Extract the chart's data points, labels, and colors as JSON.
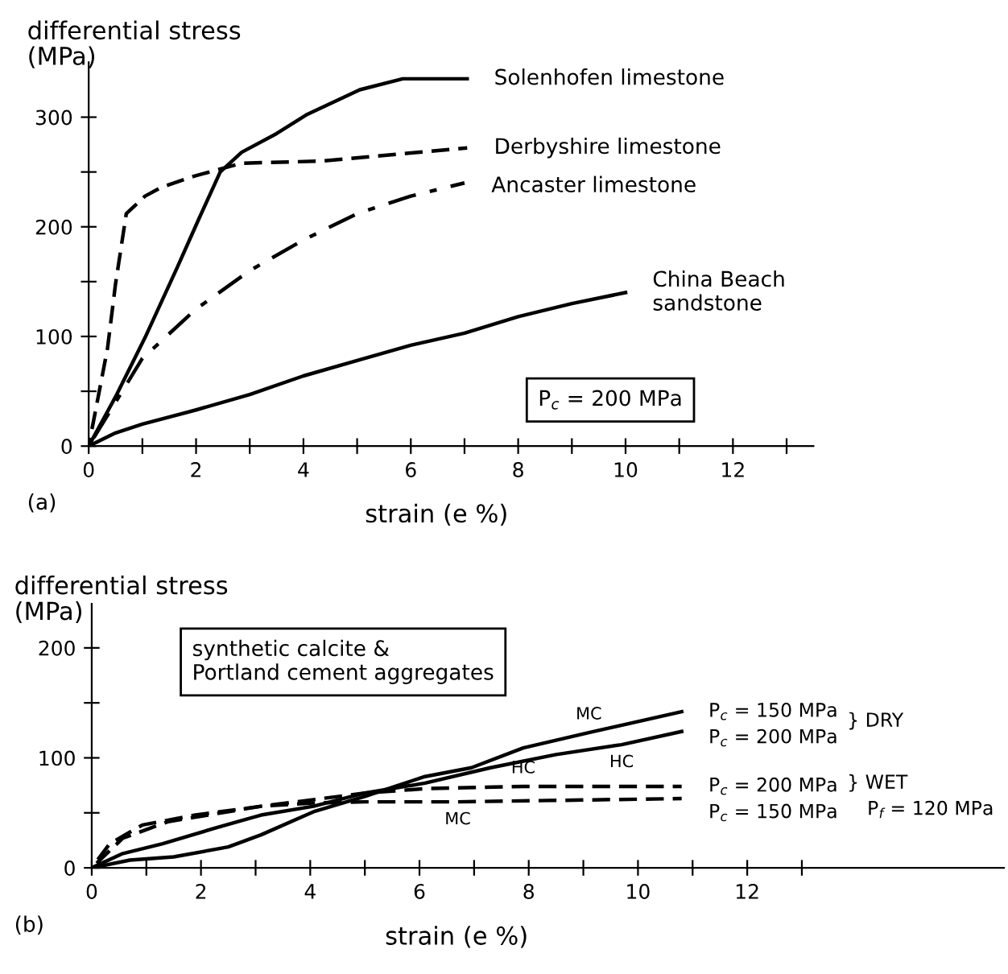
{
  "chart_data": [
    {
      "type": "line",
      "xlabel": "strain (e %)",
      "ylabel": "differential stress\n(MPa)",
      "xlim": [
        0,
        13.5
      ],
      "ylim": [
        0,
        350
      ],
      "xticks": [
        0,
        {
          "value": 1,
          "label": null
        },
        2,
        {
          "value": 3,
          "label": null
        },
        4,
        {
          "value": 5,
          "label": null
        },
        6,
        {
          "value": 7,
          "label": null
        },
        8,
        {
          "value": 9,
          "label": null
        },
        10,
        {
          "value": 11,
          "label": null
        },
        12,
        {
          "value": 13,
          "label": null
        }
      ],
      "yticks": [
        0,
        {
          "value": 50,
          "label": null
        },
        100,
        {
          "value": 150,
          "label": null
        },
        200,
        {
          "value": 250,
          "label": null
        },
        300
      ],
      "grid": false,
      "legend": false,
      "marker": "none",
      "series": [
        {
          "name": "Solenhofen limestone",
          "color": "#000000",
          "line_style": "solid",
          "x": [
            0,
            0.5,
            1.05,
            1.65,
            2.05,
            2.45,
            2.85,
            3.5,
            4.05,
            5.05,
            5.85,
            7.05
          ],
          "values": [
            0,
            45,
            99,
            163,
            207,
            250,
            268,
            285,
            302,
            325,
            335,
            335
          ]
        },
        {
          "name": "Derbyshire limestone",
          "color": "#000000",
          "line_style": "dashed",
          "x": [
            0,
            0.35,
            0.5,
            0.7,
            1.05,
            1.35,
            1.95,
            2.85,
            4.35,
            7.05
          ],
          "values": [
            0,
            89,
            148,
            212,
            228,
            236,
            246,
            258,
            260,
            272
          ]
        },
        {
          "name": "Ancaster limestone",
          "color": "#000000",
          "line_style": "dashdot",
          "x": [
            0,
            1,
            2,
            3,
            4,
            5,
            6,
            7
          ],
          "values": [
            0,
            80,
            125,
            160,
            188,
            212,
            228,
            240
          ]
        },
        {
          "name": "China Beach\nsandstone",
          "color": "#000000",
          "line_style": "solid",
          "x": [
            0,
            0.5,
            1,
            2,
            3,
            4,
            5,
            6,
            7,
            8,
            9,
            10
          ],
          "values": [
            0,
            12,
            20,
            33,
            47,
            64,
            78,
            92,
            103,
            118,
            130,
            140
          ]
        }
      ],
      "annotations": [
        "(a)",
        "P$_{c}$ = 200 MPa"
      ]
    },
    {
      "type": "line",
      "xlabel": "strain (e %)",
      "ylabel": "differential stress\n(MPa)",
      "xlim": [
        0,
        16.7
      ],
      "ylim": [
        0,
        240
      ],
      "xticks": [
        0,
        {
          "value": 1,
          "label": null
        },
        2,
        {
          "value": 3,
          "label": null
        },
        4,
        {
          "value": 5,
          "label": null
        },
        6,
        {
          "value": 7,
          "label": null
        },
        8,
        {
          "value": 9,
          "label": null
        },
        10,
        {
          "value": 11,
          "label": null
        },
        12,
        {
          "value": 13,
          "label": null
        }
      ],
      "yticks": [
        0,
        {
          "value": 50,
          "label": null
        },
        100,
        {
          "value": 150,
          "label": null
        },
        200
      ],
      "grid": false,
      "legend": false,
      "marker": "none",
      "series": [
        {
          "name": "P$_{c}$ = 150 MPa",
          "color": "#000000",
          "line_style": "solid",
          "x": [
            0,
            0.7,
            1.5,
            2.5,
            3.1,
            4.06,
            5,
            6.1,
            6.95,
            7.9,
            9.1,
            10.8
          ],
          "values": [
            0,
            7,
            10,
            19,
            30,
            51,
            65,
            83,
            91,
            109,
            123,
            142
          ]
        },
        {
          "name": "P$_{c}$ = 200 MPa",
          "color": "#000000",
          "line_style": "solid",
          "x": [
            0,
            0.57,
            1.3,
            2.25,
            3.1,
            4.06,
            5,
            6.1,
            7.3,
            8.5,
            9.7,
            10.8
          ],
          "values": [
            0,
            13,
            22,
            36,
            48,
            56,
            68,
            77,
            91,
            103,
            112,
            124
          ]
        },
        {
          "name": "P$_{c}$ = 200 MPa",
          "color": "#000000",
          "line_style": "dashed",
          "x": [
            0,
            0.33,
            0.93,
            1.9,
            3.1,
            4.06,
            5,
            6.1,
            7.9,
            10.8
          ],
          "values": [
            0,
            22,
            39,
            48,
            56,
            62,
            68,
            72,
            74,
            74
          ]
        },
        {
          "name": "P$_{c}$ = 150 MPa",
          "color": "#000000",
          "line_style": "dashed",
          "x": [
            0,
            0.57,
            1.4,
            2.25,
            3.1,
            4.06,
            5,
            6.7,
            10.8
          ],
          "values": [
            0,
            27,
            42,
            49,
            56,
            59,
            60,
            60,
            63
          ]
        }
      ],
      "annotations": [
        "(b)",
        "synthetic calcite &\nPortland cement aggregates",
        "} DRY",
        "} WET",
        "P$_{f}$ = 120 MPa",
        {
          "text": "MC",
          "x": 9.1,
          "y": 123
        },
        {
          "text": "HC",
          "x": 9.7,
          "y": 112
        },
        {
          "text": "HC",
          "x": 7.9,
          "y": 74
        },
        {
          "text": "MC",
          "x": 6.7,
          "y": 60
        }
      ]
    }
  ]
}
